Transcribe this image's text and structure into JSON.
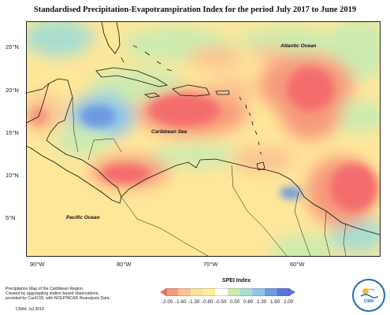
{
  "title": "Standardised Precipitation-Evapotranspiration Index for the period July 2017 to June 2019",
  "latitude_labels": [
    "25°N",
    "20°N",
    "15°N",
    "10°N",
    "5°N"
  ],
  "longitude_labels": [
    "90°W",
    "80°W",
    "70°W",
    "60°W"
  ],
  "ocean_labels": {
    "atlantic": "Atlantic Ocean",
    "caribbean": "Caribbean Sea",
    "pacific": "Pacific Ocean"
  },
  "credit": {
    "line1": "Precipitation Map of the Caribbean Region.",
    "line2": "Created by aggregating station based observations,",
    "line3": "provided by CariCOF, with NCEP/NCAR Reanalysis Data.",
    "footer": "CIMH: Jul 2019"
  },
  "legend": {
    "title": "SPEI Index",
    "ticks": [
      "-2.00",
      "-1.60",
      "-1.30",
      "-0.80",
      "-0.50",
      "0.50",
      "0.80",
      "1.30",
      "1.60",
      "2.00"
    ],
    "colors": [
      "#f46d6d",
      "#f79a7c",
      "#fbc291",
      "#fde39a",
      "#ffef9c",
      "#ffffff",
      "#ccebb0",
      "#a8ddd0",
      "#8cc4ea",
      "#6f9ae0",
      "#5c72dd"
    ]
  },
  "logo": {
    "text": "CIMH"
  }
}
